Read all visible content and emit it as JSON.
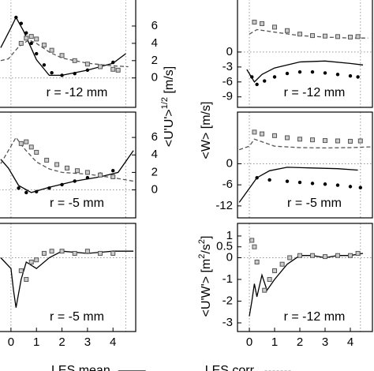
{
  "chart_data": [
    {
      "type": "line",
      "annotation": "r = -12 mm",
      "xlim": [
        -0.46,
        4.89
      ],
      "ylim": [
        -3.4,
        9.1
      ],
      "yticks": [
        0,
        2,
        4,
        6
      ],
      "hline": 0,
      "vlines": [
        0,
        4.5
      ],
      "ylabel_parts": [
        {
          "text": "<U'U'>"
        },
        {
          "text": "1/2",
          "sup": true
        },
        {
          "text": " [m/s]"
        }
      ],
      "series": [
        {
          "name": "LES mean",
          "style": "solid",
          "color": "#000",
          "x": [
            -0.4,
            0,
            0.2,
            0.5,
            1,
            1.5,
            2,
            3,
            4,
            4.5
          ],
          "values": [
            3.5,
            5.8,
            7.0,
            5.4,
            2.1,
            0.3,
            0.3,
            0.9,
            1.7,
            2.8
          ]
        },
        {
          "name": "LES corr.",
          "style": "dashed",
          "color": "#555",
          "x": [
            -0.4,
            -0.1,
            0.3,
            0.7,
            1,
            1.5,
            2,
            3,
            4,
            4.6
          ],
          "values": [
            2.0,
            2.2,
            3.6,
            4.4,
            4.0,
            3.0,
            2.3,
            1.7,
            1.4,
            1.3
          ]
        },
        {
          "style": "dots",
          "color": "#000",
          "x": [
            0.2,
            0.4,
            0.6,
            0.8,
            1,
            1.3,
            1.6,
            2,
            2.5,
            3,
            3.5,
            4
          ],
          "values": [
            7.0,
            6.3,
            5.2,
            4.0,
            2.8,
            1.5,
            0.6,
            0.3,
            0.5,
            0.9,
            1.3,
            1.8
          ]
        },
        {
          "style": "squares",
          "color": "#555",
          "x": [
            0.4,
            0.6,
            0.8,
            1,
            1.3,
            1.6,
            2,
            2.5,
            3,
            3.5,
            4,
            4.2
          ],
          "values": [
            4.0,
            4.6,
            4.8,
            4.5,
            3.8,
            3.2,
            2.6,
            2.0,
            1.6,
            1.3,
            1.0,
            0.9
          ]
        }
      ]
    },
    {
      "type": "line",
      "annotation": "r = -5 mm",
      "xlim": [
        -0.46,
        4.89
      ],
      "ylim": [
        -3.2,
        8.9
      ],
      "yticks": [
        0,
        2,
        4,
        6
      ],
      "hline": 0,
      "vlines": [
        0,
        4.5
      ],
      "series": [
        {
          "style": "solid",
          "color": "#000",
          "x": [
            -0.4,
            -0.1,
            0.3,
            0.8,
            1.5,
            2.5,
            3.5,
            4.2,
            4.8
          ],
          "values": [
            3.5,
            2.5,
            0.5,
            -0.3,
            0.3,
            1.0,
            1.5,
            2.0,
            4.5
          ]
        },
        {
          "style": "dashed",
          "color": "#555",
          "x": [
            -0.4,
            0,
            0.2,
            0.5,
            1,
            1.5,
            2,
            3,
            4,
            4.8
          ],
          "values": [
            3.0,
            5.0,
            6.0,
            4.8,
            3.2,
            2.4,
            2.0,
            1.8,
            1.4,
            1.0
          ]
        },
        {
          "style": "dots",
          "color": "#000",
          "x": [
            0.3,
            0.6,
            1,
            1.5,
            2,
            2.5,
            3,
            3.5,
            4
          ],
          "values": [
            0.2,
            -0.3,
            -0.2,
            0.2,
            0.6,
            1.0,
            1.4,
            1.8,
            2.2
          ]
        },
        {
          "style": "squares",
          "color": "#555",
          "x": [
            0.4,
            0.6,
            0.8,
            1,
            1.4,
            1.8,
            2.2,
            2.6,
            3,
            3.5,
            4
          ],
          "values": [
            5.3,
            5.5,
            4.9,
            4.3,
            3.4,
            2.9,
            2.5,
            2.2,
            2.0,
            1.7,
            1.5
          ]
        }
      ]
    },
    {
      "type": "line",
      "annotation": "r = -5 mm",
      "xlim": [
        -0.46,
        4.89
      ],
      "ylim": [
        -3.4,
        1.58
      ],
      "xticks": [
        0,
        1,
        2,
        3,
        4
      ],
      "hline": 0,
      "vlines": [
        0,
        4.5
      ],
      "series": [
        {
          "style": "solid",
          "color": "#000",
          "x": [
            -0.4,
            0,
            0.1,
            0.2,
            0.4,
            0.6,
            1,
            1.5,
            2,
            3,
            4,
            4.8
          ],
          "values": [
            0.0,
            -0.5,
            -1.5,
            -2.3,
            -1.0,
            -0.2,
            -0.5,
            0.0,
            0.3,
            0.2,
            0.3,
            0.3
          ]
        },
        {
          "style": "squares",
          "color": "#555",
          "x": [
            0.4,
            0.6,
            0.8,
            1,
            1.3,
            1.6,
            2,
            2.5,
            3,
            3.5,
            4
          ],
          "values": [
            -0.6,
            -1.0,
            -0.2,
            -0.1,
            0.2,
            0.3,
            0.3,
            0.2,
            0.3,
            0.2,
            0.2
          ]
        }
      ]
    },
    {
      "type": "line",
      "annotation": "r = -12 mm",
      "xlim": [
        -0.47,
        4.875
      ],
      "ylim": [
        -11.1,
        10.6
      ],
      "yticks": [
        -9,
        -6,
        -3,
        0
      ],
      "hline": 0,
      "vlines": [
        0,
        4.4
      ],
      "ylabel_parts": [
        {
          "text": "<W> [m/s]"
        }
      ],
      "series": [
        {
          "style": "solid",
          "color": "#000",
          "x": [
            -0.1,
            0.2,
            0.5,
            1,
            2,
            3,
            4,
            4.5
          ],
          "values": [
            -3.5,
            -6.0,
            -4.5,
            -3.2,
            -2.0,
            -1.8,
            -2.3,
            -2.6
          ]
        },
        {
          "style": "dashed",
          "color": "#555",
          "x": [
            0,
            0.3,
            1,
            2,
            3,
            4,
            4.7
          ],
          "values": [
            3.6,
            4.5,
            4.0,
            3.3,
            3.0,
            2.8,
            2.8
          ]
        },
        {
          "style": "dots",
          "color": "#000",
          "x": [
            0.1,
            0.3,
            0.6,
            1,
            1.5,
            2,
            2.5,
            3,
            3.5,
            4,
            4.3
          ],
          "values": [
            -5.0,
            -6.5,
            -5.8,
            -5.0,
            -4.3,
            -4.0,
            -4.0,
            -4.2,
            -4.5,
            -4.8,
            -5.0
          ]
        },
        {
          "style": "squares",
          "color": "#555",
          "x": [
            0.2,
            0.5,
            1,
            1.5,
            2,
            2.5,
            3,
            3.5,
            4,
            4.3
          ],
          "values": [
            6.0,
            5.7,
            5.0,
            4.3,
            3.6,
            3.3,
            3.2,
            3.1,
            3.0,
            3.1
          ]
        }
      ]
    },
    {
      "type": "line",
      "annotation": "r = -5 mm",
      "xlim": [
        -0.47,
        4.875
      ],
      "ylim": [
        -15.4,
        14.7
      ],
      "yticks": [
        -12,
        -6,
        0
      ],
      "hline": 0,
      "vlines": [
        0,
        4.4
      ],
      "series": [
        {
          "style": "solid",
          "color": "#000",
          "x": [
            -0.4,
            0,
            0.3,
            0.8,
            1.5,
            2.5,
            3.5,
            4.3
          ],
          "values": [
            -11.0,
            -7.0,
            -4.0,
            -2.0,
            -1.0,
            -1.2,
            -1.4,
            -1.8
          ]
        },
        {
          "style": "dashed",
          "color": "#555",
          "x": [
            -0.4,
            0,
            0.2,
            0.6,
            1,
            2,
            3,
            4,
            4.8
          ],
          "values": [
            4.0,
            5.0,
            7.0,
            6.0,
            5.0,
            4.6,
            4.5,
            4.6,
            4.8
          ]
        },
        {
          "style": "dots",
          "color": "#000",
          "x": [
            0.3,
            0.8,
            1.5,
            2,
            2.5,
            3,
            3.5,
            4,
            4.4
          ],
          "values": [
            -4.0,
            -4.6,
            -5.0,
            -5.3,
            -5.6,
            -5.8,
            -6.1,
            -6.5,
            -6.8
          ]
        },
        {
          "style": "squares",
          "color": "#555",
          "x": [
            0.2,
            0.5,
            1,
            1.5,
            2,
            2.5,
            3,
            3.5,
            4,
            4.4
          ],
          "values": [
            9.0,
            8.5,
            8.0,
            7.4,
            7.0,
            6.8,
            6.6,
            6.5,
            6.4,
            6.5
          ]
        }
      ]
    },
    {
      "type": "line",
      "annotation": "r = -12 mm",
      "xlim": [
        -0.47,
        4.875
      ],
      "ylim": [
        -3.4,
        1.58
      ],
      "xticks": [
        0,
        1,
        2,
        3,
        4
      ],
      "yticks": [
        -3,
        -2,
        -1,
        0,
        0.5,
        1
      ],
      "hline": 0,
      "vlines": [
        0,
        4.4
      ],
      "ylabel_parts": [
        {
          "text": "<U'W'> [m"
        },
        {
          "text": "2",
          "sup": true
        },
        {
          "text": "/s"
        },
        {
          "text": "2",
          "sup": true
        },
        {
          "text": "]"
        }
      ],
      "series": [
        {
          "style": "solid",
          "color": "#000",
          "x": [
            0,
            0.1,
            0.2,
            0.3,
            0.5,
            0.7,
            1,
            1.5,
            2,
            2.5,
            3,
            3.5,
            4,
            4.5
          ],
          "values": [
            -2.7,
            -2.0,
            -1.2,
            -1.8,
            -0.8,
            -1.5,
            -1.0,
            -0.3,
            0.1,
            0.1,
            0.0,
            0.1,
            0.1,
            0.2
          ]
        },
        {
          "style": "squares",
          "color": "#555",
          "x": [
            0.1,
            0.2,
            0.3,
            0.6,
            0.8,
            1,
            1.3,
            1.6,
            2,
            2.5,
            3,
            3.5,
            4,
            4.3
          ],
          "values": [
            0.8,
            0.5,
            -0.2,
            -1.5,
            -1.0,
            -0.6,
            -0.3,
            0.0,
            0.1,
            0.1,
            0.05,
            0.1,
            0.1,
            0.2
          ]
        }
      ]
    }
  ]
}
